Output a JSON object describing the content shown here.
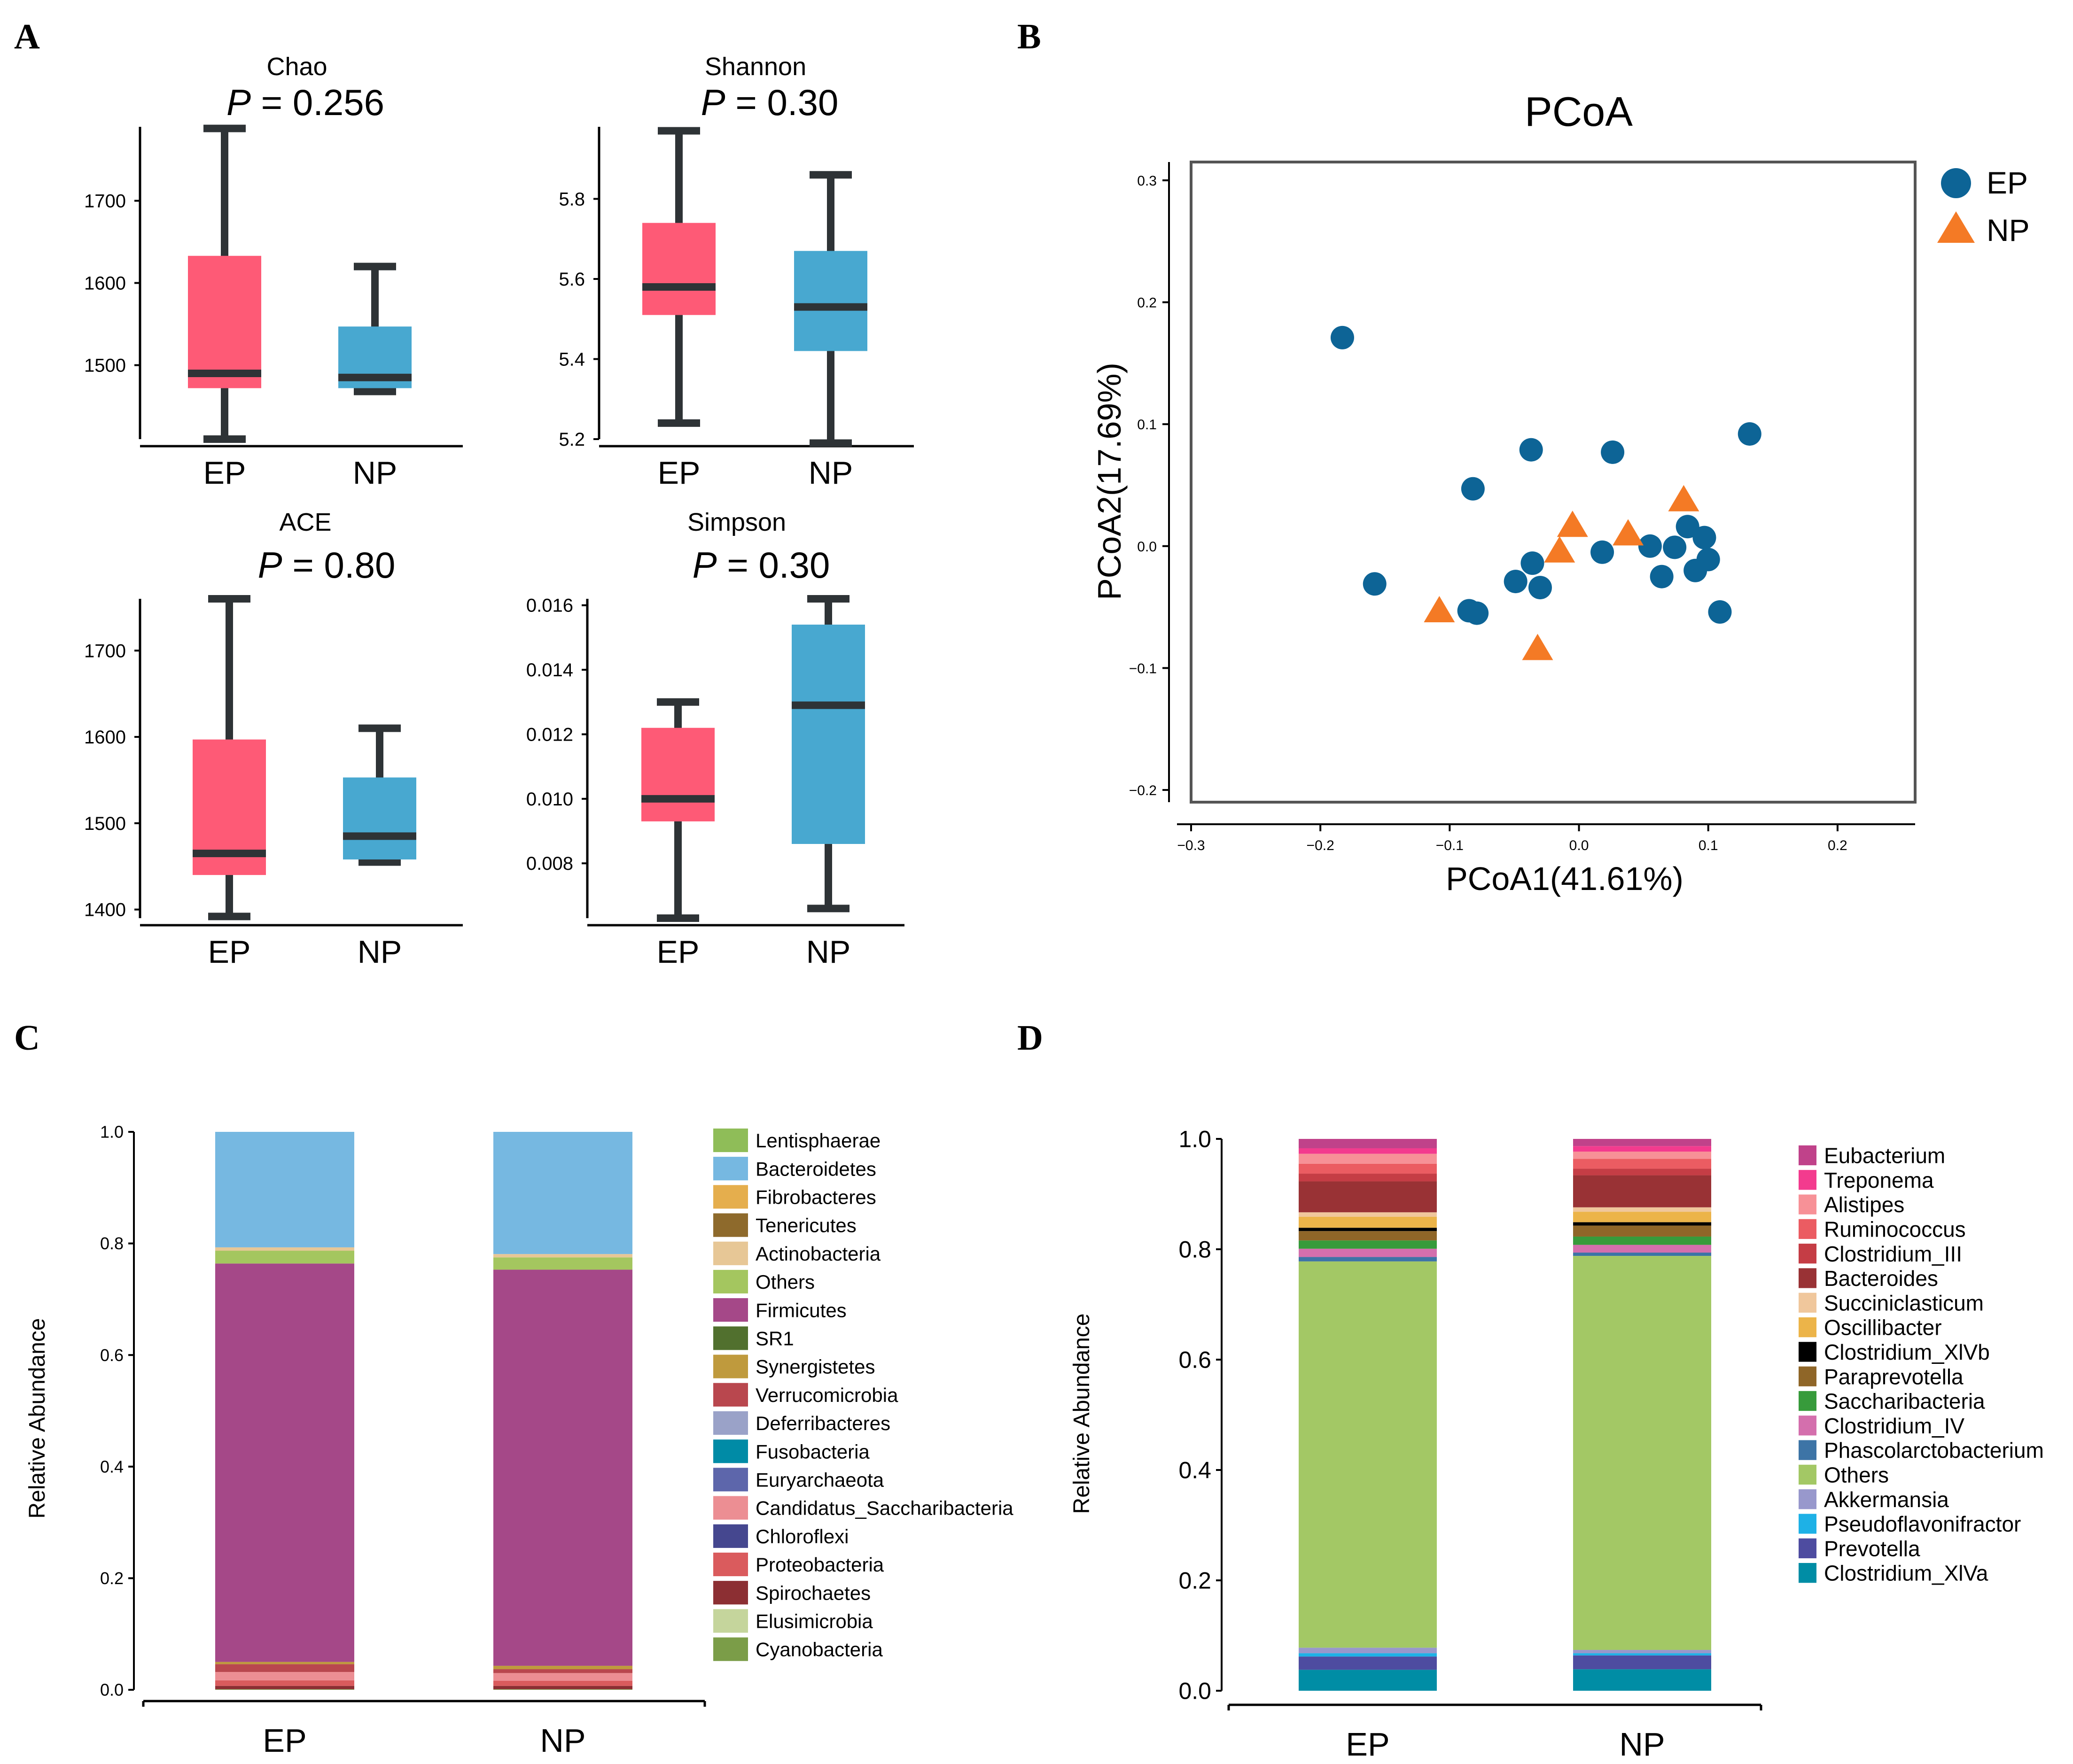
{
  "colors": {
    "ep_box": "#fe5a76",
    "np_box": "#48a8d0",
    "whisker": "#2e3336",
    "ep_point": "#0d6496",
    "np_point": "#f47a25"
  },
  "panel_letters": [
    "A",
    "B",
    "C",
    "D"
  ],
  "boxplots": {
    "groups": [
      "EP",
      "NP"
    ],
    "panels": [
      {
        "title": "Chao",
        "p_prefix": "P",
        "p_value": "= 0.256",
        "ylim": [
          1410,
          1790
        ],
        "ticks": [
          1500,
          1600,
          1700
        ],
        "tick_labels": [
          "1500",
          "1600",
          "1700"
        ],
        "ep": {
          "min": 1410,
          "q1": 1472,
          "median": 1490,
          "q3": 1633,
          "max": 1788
        },
        "np": {
          "min": 1468,
          "q1": 1472,
          "median": 1485,
          "q3": 1547,
          "max": 1620
        }
      },
      {
        "title": "Shannon",
        "p_prefix": "P",
        "p_value": "= 0.30",
        "ylim": [
          5.2,
          5.98
        ],
        "ticks": [
          5.2,
          5.4,
          5.6,
          5.8
        ],
        "tick_labels": [
          "5.2",
          "5.4",
          "5.6",
          "5.8"
        ],
        "ep": {
          "min": 5.24,
          "q1": 5.51,
          "median": 5.58,
          "q3": 5.74,
          "max": 5.97
        },
        "np": {
          "min": 5.19,
          "q1": 5.42,
          "median": 5.53,
          "q3": 5.67,
          "max": 5.86
        }
      },
      {
        "title": "ACE",
        "p_prefix": "P",
        "p_value": "= 0.80",
        "ylim": [
          1390,
          1760
        ],
        "ticks": [
          1400,
          1500,
          1600,
          1700
        ],
        "tick_labels": [
          "1400",
          "1500",
          "1600",
          "1700"
        ],
        "ep": {
          "min": 1392,
          "q1": 1440,
          "median": 1465,
          "q3": 1597,
          "max": 1760
        },
        "np": {
          "min": 1455,
          "q1": 1458,
          "median": 1485,
          "q3": 1553,
          "max": 1610
        }
      },
      {
        "title": "Simpson",
        "p_prefix": "P",
        "p_value": "= 0.30",
        "ylim": [
          0.0063,
          0.0162
        ],
        "ticks": [
          0.008,
          0.01,
          0.012,
          0.014,
          0.016
        ],
        "tick_labels": [
          "0.008",
          "0.010",
          "0.012",
          "0.014",
          "0.016"
        ],
        "ep": {
          "min": 0.0063,
          "q1": 0.0093,
          "median": 0.01,
          "q3": 0.0122,
          "max": 0.013
        },
        "np": {
          "min": 0.0066,
          "q1": 0.0086,
          "median": 0.0129,
          "q3": 0.0154,
          "max": 0.0162
        }
      }
    ]
  },
  "chart_data": [
    {
      "type": "scatter",
      "title": "PCoA",
      "xlabel": "PCoA1(41.61%)",
      "ylabel": "PCoA2(17.69%)",
      "xlim": [
        -0.3,
        0.26
      ],
      "ylim": [
        -0.21,
        0.315
      ],
      "xticks": [
        -0.3,
        -0.2,
        -0.1,
        0.0,
        0.1,
        0.2
      ],
      "xtick_labels": [
        "−0.3",
        "−0.2",
        "−0.1",
        "0.0",
        "0.1",
        "0.2"
      ],
      "yticks": [
        -0.2,
        -0.1,
        0.0,
        0.1,
        0.2,
        0.3
      ],
      "ytick_labels": [
        "−0.2",
        "−0.1",
        "0.0",
        "0.1",
        "0.2",
        "0.3"
      ],
      "legend_position": "top-right",
      "series": [
        {
          "name": "EP",
          "marker": "circle",
          "x": [
            -0.183,
            0.132,
            -0.037,
            0.026,
            -0.082,
            -0.158,
            -0.085,
            -0.079,
            -0.049,
            -0.036,
            -0.03,
            0.018,
            0.055,
            0.064,
            0.074,
            0.084,
            0.09,
            0.097,
            0.1,
            0.109
          ],
          "y": [
            0.171,
            0.092,
            0.079,
            0.077,
            0.047,
            -0.031,
            -0.053,
            -0.055,
            -0.029,
            -0.014,
            -0.034,
            -0.005,
            0.0,
            -0.025,
            -0.001,
            0.016,
            -0.02,
            0.007,
            -0.011,
            -0.054
          ]
        },
        {
          "name": "NP",
          "marker": "triangle",
          "x": [
            -0.108,
            -0.032,
            -0.015,
            -0.005,
            0.038,
            0.081
          ],
          "y": [
            -0.054,
            -0.085,
            -0.005,
            0.016,
            0.009,
            0.037
          ]
        }
      ]
    },
    {
      "type": "bar",
      "stacked": true,
      "ylabel": "Relative Abundance",
      "categories": [
        "EP",
        "NP"
      ],
      "ylim": [
        0,
        1.0
      ],
      "yticks": [
        0,
        0.2,
        0.4,
        0.6,
        0.8,
        1.0
      ],
      "ytick_labels": [
        "0.0",
        "0.2",
        "0.4",
        "0.6",
        "0.8",
        "1.0"
      ],
      "legend_position": "right",
      "legend": [
        "Lentisphaerae",
        "Bacteroidetes",
        "Fibrobacteres",
        "Tenericutes",
        "Actinobacteria",
        "Others",
        "Firmicutes",
        "SR1",
        "Synergistetes",
        "Verrucomicrobia",
        "Deferribacteres",
        "Fusobacteria",
        "Euryarchaeota",
        "Candidatus_Saccharibacteria",
        "Chloroflexi",
        "Proteobacteria",
        "Spirochaetes",
        "Elusimicrobia",
        "Cyanobacteria"
      ],
      "legend_colors": [
        "#8fbd58",
        "#76b8e1",
        "#e5ae4d",
        "#8e6a2c",
        "#e7c796",
        "#a4c65f",
        "#a54888",
        "#51702e",
        "#bf9a3d",
        "#b9474e",
        "#9aa2c8",
        "#008ba6",
        "#5d66ab",
        "#ec8e93",
        "#45478f",
        "#da5b5d",
        "#8c2f33",
        "#c5d59c",
        "#7b9d48"
      ],
      "series": [
        {
          "name": "Cyanobacteria",
          "color": "#7b9d48",
          "values": [
            0.001,
            0.001
          ]
        },
        {
          "name": "Spirochaetes",
          "color": "#8c2f33",
          "values": [
            0.006,
            0.006
          ]
        },
        {
          "name": "Proteobacteria",
          "color": "#da5b5d",
          "values": [
            0.01,
            0.009
          ]
        },
        {
          "name": "Candidatus_Saccharibacteria",
          "color": "#ec8e93",
          "values": [
            0.015,
            0.014
          ]
        },
        {
          "name": "Verrucomicrobia",
          "color": "#b9474e",
          "values": [
            0.014,
            0.007
          ]
        },
        {
          "name": "Synergistetes",
          "color": "#bf9a3d",
          "values": [
            0.004,
            0.006
          ]
        },
        {
          "name": "Firmicutes",
          "color": "#a54888",
          "values": [
            0.714,
            0.71
          ]
        },
        {
          "name": "Others",
          "color": "#a4c65f",
          "values": [
            0.023,
            0.022
          ]
        },
        {
          "name": "Actinobacteria",
          "color": "#e7c796",
          "values": [
            0.006,
            0.006
          ]
        },
        {
          "name": "Bacteroidetes",
          "color": "#76b8e1",
          "values": [
            0.207,
            0.219
          ]
        }
      ]
    },
    {
      "type": "bar",
      "stacked": true,
      "ylabel": "Relative Abundance",
      "categories": [
        "EP",
        "NP"
      ],
      "ylim": [
        0,
        1.0
      ],
      "yticks": [
        0,
        0.2,
        0.4,
        0.6,
        0.8,
        1.0
      ],
      "ytick_labels": [
        "0.0",
        "0.2",
        "0.4",
        "0.6",
        "0.8",
        "1.0"
      ],
      "legend_position": "right",
      "legend": [
        "Eubacterium",
        "Treponema",
        "Alistipes",
        "Ruminococcus",
        "Clostridium_III",
        "Bacteroides",
        "Succiniclasticum",
        "Oscillibacter",
        "Clostridium_XlVb",
        "Paraprevotella",
        "Saccharibacteria",
        "Clostridium_IV",
        "Phascolarctobacterium",
        "Others",
        "Akkermansia",
        "Pseudoflavonifractor",
        "Prevotella",
        "Clostridium_XlVa"
      ],
      "legend_colors": [
        "#c0428a",
        "#f33b8e",
        "#f79197",
        "#eb5c62",
        "#c53d45",
        "#993235",
        "#f0c79c",
        "#ecb449",
        "#000000",
        "#8f6628",
        "#379b3b",
        "#d46fad",
        "#3d74a6",
        "#a3c865",
        "#9898cc",
        "#1eb1e6",
        "#4e4ca0",
        "#008da5"
      ],
      "series": [
        {
          "name": "Clostridium_XlVa",
          "color": "#008da5",
          "values": [
            0.038,
            0.039
          ]
        },
        {
          "name": "Prevotella",
          "color": "#4e4ca0",
          "values": [
            0.024,
            0.025
          ]
        },
        {
          "name": "Pseudoflavonifractor",
          "color": "#1eb1e6",
          "values": [
            0.006,
            0.004
          ]
        },
        {
          "name": "Akkermansia",
          "color": "#9898cc",
          "values": [
            0.01,
            0.006
          ]
        },
        {
          "name": "Others",
          "color": "#a3c865",
          "values": [
            0.7,
            0.714
          ]
        },
        {
          "name": "Phascolarctobacterium",
          "color": "#3d74a6",
          "values": [
            0.008,
            0.006
          ]
        },
        {
          "name": "Clostridium_IV",
          "color": "#d46fad",
          "values": [
            0.015,
            0.014
          ]
        },
        {
          "name": "Saccharibacteria",
          "color": "#379b3b",
          "values": [
            0.015,
            0.015
          ]
        },
        {
          "name": "Paraprevotella",
          "color": "#8f6628",
          "values": [
            0.017,
            0.02
          ]
        },
        {
          "name": "Clostridium_XlVb",
          "color": "#000000",
          "values": [
            0.006,
            0.006
          ]
        },
        {
          "name": "Oscillibacter",
          "color": "#ecb449",
          "values": [
            0.02,
            0.019
          ]
        },
        {
          "name": "Succiniclasticum",
          "color": "#f0c79c",
          "values": [
            0.008,
            0.008
          ]
        },
        {
          "name": "Bacteroides",
          "color": "#993235",
          "values": [
            0.056,
            0.058
          ]
        },
        {
          "name": "Clostridium_III",
          "color": "#c53d45",
          "values": [
            0.014,
            0.012
          ]
        },
        {
          "name": "Ruminococcus",
          "color": "#eb5c62",
          "values": [
            0.018,
            0.018
          ]
        },
        {
          "name": "Alistipes",
          "color": "#f79197",
          "values": [
            0.018,
            0.013
          ]
        },
        {
          "name": "Treponema",
          "color": "#f33b8e",
          "values": [
            0.01,
            0.01
          ]
        },
        {
          "name": "Eubacterium",
          "color": "#c0428a",
          "values": [
            0.017,
            0.013
          ]
        }
      ]
    }
  ]
}
